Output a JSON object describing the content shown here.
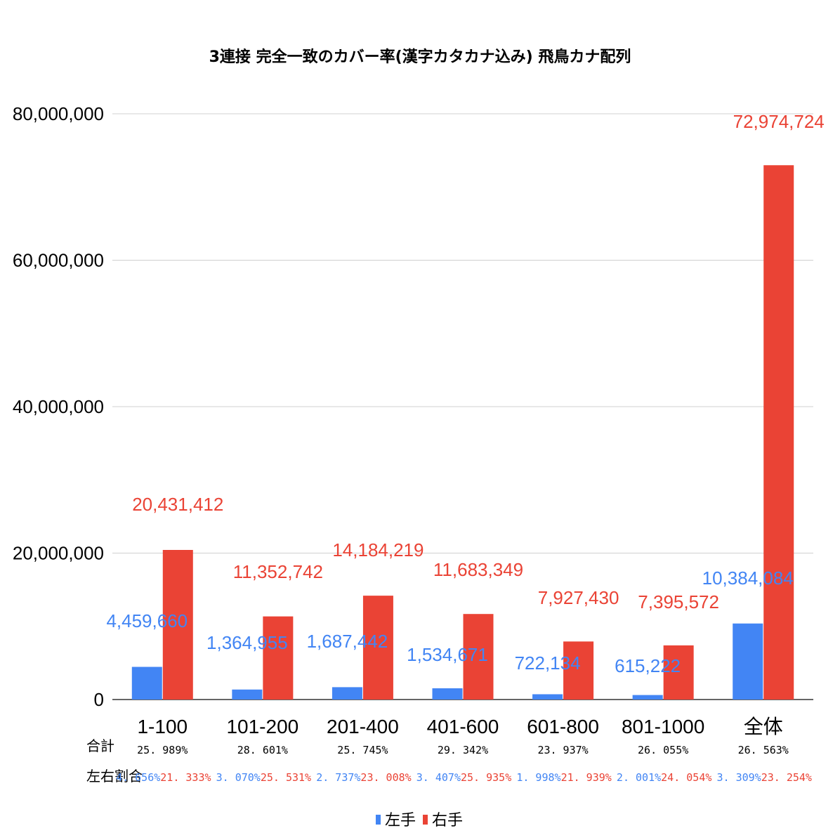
{
  "colors": {
    "left": "#4285f4",
    "right": "#ea4335",
    "grid": "#d0d0d0",
    "text": "#000000"
  },
  "chart_data": {
    "type": "bar",
    "title": "3連接 完全一致のカバー率(漢字カタカナ込み) 飛鳥カナ配列",
    "categories": [
      "1-100",
      "101-200",
      "201-400",
      "401-600",
      "601-800",
      "801-1000",
      "全体"
    ],
    "series": [
      {
        "name": "左手",
        "values": [
          4459660,
          1364955,
          1687442,
          1534671,
          722134,
          615222,
          10384084
        ],
        "labels": [
          "4,459,660",
          "1,364,955",
          "1,687,442",
          "1,534,671",
          "722,134",
          "615,222",
          "10,384,084"
        ]
      },
      {
        "name": "右手",
        "values": [
          20431412,
          11352742,
          14184219,
          11683349,
          7927430,
          7395572,
          72974724
        ],
        "labels": [
          "20,431,412",
          "11,352,742",
          "14,184,219",
          "11,683,349",
          "7,927,430",
          "7,395,572",
          "72,974,724"
        ]
      }
    ],
    "ylim": [
      0,
      80000000
    ],
    "yticks": [
      0,
      20000000,
      40000000,
      60000000,
      80000000
    ],
    "ytick_labels": [
      "0",
      "20,000,000",
      "40,000,000",
      "60,000,000",
      "80,000,000"
    ],
    "grid": true,
    "legend": "bottom",
    "xlabel": "",
    "ylabel": ""
  },
  "table": {
    "total_label": "合計",
    "ratio_label": "左右割合",
    "totals": [
      "25. 989%",
      "28. 601%",
      "25. 745%",
      "29. 342%",
      "23. 937%",
      "26. 055%",
      "26. 563%"
    ],
    "left_ratios": [
      "4. 656%",
      "3. 070%",
      "2. 737%",
      "3. 407%",
      "1. 998%",
      "2. 001%",
      "3. 309%"
    ],
    "right_ratios": [
      "21. 333%",
      "25. 531%",
      "23. 008%",
      "25. 935%",
      "21. 939%",
      "24. 054%",
      "23. 254%"
    ]
  }
}
